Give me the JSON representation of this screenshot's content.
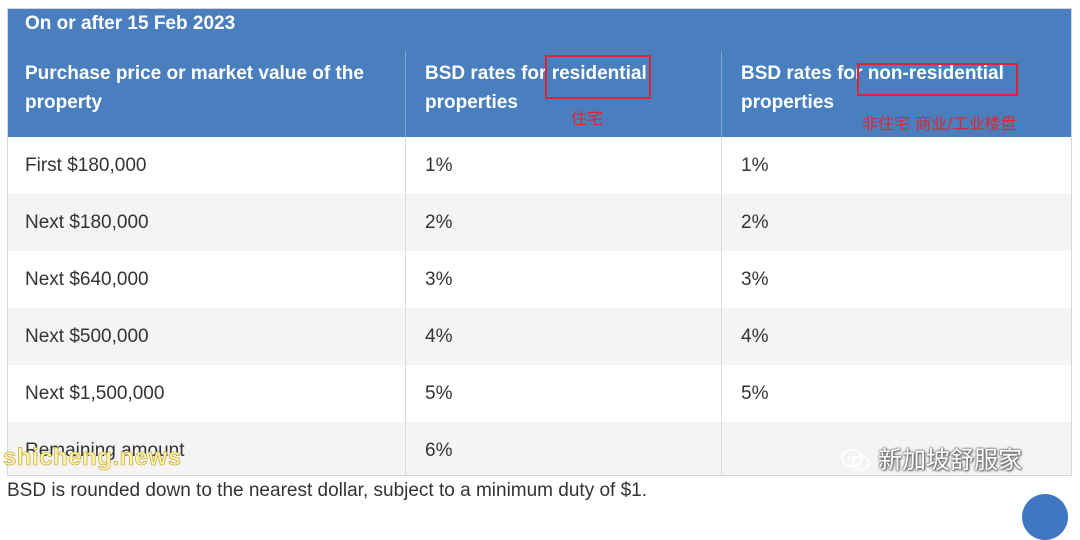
{
  "table": {
    "caption": "On or after 15 Feb 2023",
    "headers": {
      "col1": [
        "Purchase price or market value of the",
        "property"
      ],
      "col2": [
        "BSD rates for residential",
        "properties"
      ],
      "col3": [
        "BSD rates for non-residential",
        "properties"
      ]
    },
    "rows": [
      {
        "band": "First $180,000",
        "residential": "1%",
        "non_residential": "1%"
      },
      {
        "band": "Next $180,000",
        "residential": "2%",
        "non_residential": "2%"
      },
      {
        "band": "Next $640,000",
        "residential": "3%",
        "non_residential": "3%"
      },
      {
        "band": "Next $500,000",
        "residential": "4%",
        "non_residential": "4%"
      },
      {
        "band": "Next $1,500,000",
        "residential": "5%",
        "non_residential": "5%"
      },
      {
        "band": "Remaining amount",
        "residential": "6%",
        "non_residential": ""
      }
    ]
  },
  "annotations": {
    "residential_note": "住宅",
    "non_residential_note": "非住宅 商业/工业楼盘"
  },
  "footnote": "BSD is rounded down to the nearest dollar, subject to a minimum duty of $1.",
  "watermarks": {
    "site": "shicheng.news",
    "brand": "新加坡舒服家"
  },
  "colors": {
    "header_bg": "#4a7fbf",
    "annotation": "#e0262d",
    "stripe": "#f4f4f4"
  }
}
